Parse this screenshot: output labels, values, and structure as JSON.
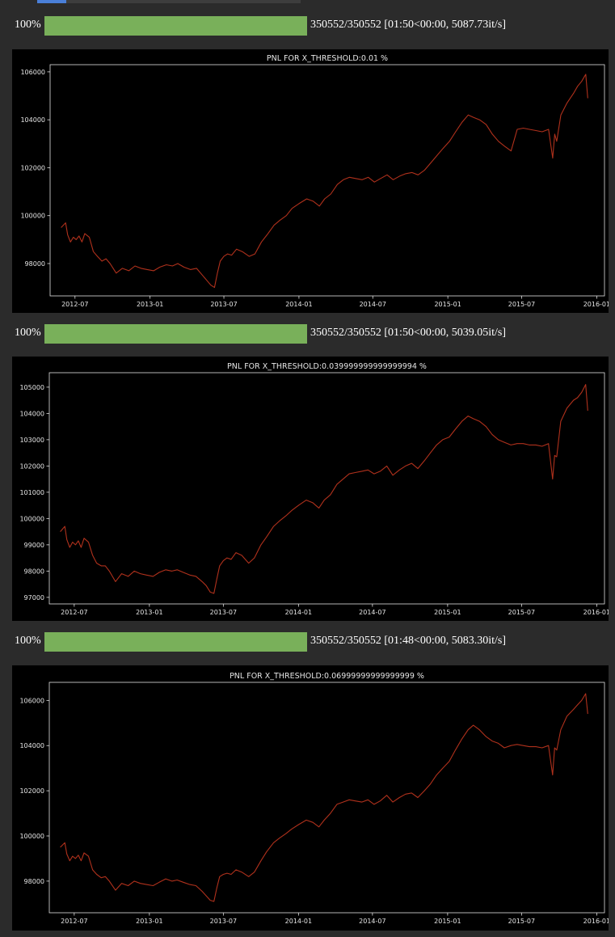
{
  "colors": {
    "background": "#2b2b2b",
    "progress_fill": "#79b05a",
    "chart_background": "#000000",
    "line": "#b0311c",
    "text": "#ffffff"
  },
  "outputs": [
    {
      "progress": {
        "percent_text": "100%",
        "fraction": 1.0,
        "stats": "350552/350552 [01:50<00:00, 5087.73it/s]"
      },
      "chart_data": {
        "type": "line",
        "title": "PNL FOR X_THRESHOLD:0.01 %",
        "xlabel": "",
        "ylabel": "",
        "xlim": [
          "2012-05-01",
          "2016-01-20"
        ],
        "ylim": [
          96650,
          106300
        ],
        "grid": false,
        "x_ticks": [
          "2012-07",
          "2013-01",
          "2013-07",
          "2014-01",
          "2014-07",
          "2015-01",
          "2015-07",
          "2016-01"
        ],
        "y_ticks": [
          98000,
          100000,
          102000,
          104000,
          106000
        ],
        "series": [
          {
            "x": [
              "2012-05-28",
              "2012-06-08",
              "2012-06-13",
              "2012-06-20",
              "2012-06-27",
              "2012-07-04",
              "2012-07-11",
              "2012-07-18",
              "2012-07-25",
              "2012-08-05",
              "2012-08-15",
              "2012-08-25",
              "2012-09-05",
              "2012-09-15",
              "2012-09-25",
              "2012-10-10",
              "2012-10-25",
              "2012-11-10",
              "2012-11-25",
              "2012-12-10",
              "2012-12-25",
              "2013-01-10",
              "2013-01-25",
              "2013-02-10",
              "2013-02-25",
              "2013-03-10",
              "2013-03-25",
              "2013-04-10",
              "2013-04-25",
              "2013-05-10",
              "2013-05-20",
              "2013-05-30",
              "2013-06-08",
              "2013-06-15",
              "2013-06-22",
              "2013-07-01",
              "2013-07-10",
              "2013-07-20",
              "2013-08-01",
              "2013-08-15",
              "2013-09-01",
              "2013-09-15",
              "2013-10-01",
              "2013-10-15",
              "2013-11-01",
              "2013-11-15",
              "2013-12-01",
              "2013-12-15",
              "2014-01-01",
              "2014-01-20",
              "2014-02-05",
              "2014-02-20",
              "2014-03-05",
              "2014-03-20",
              "2014-04-05",
              "2014-04-20",
              "2014-05-05",
              "2014-05-20",
              "2014-06-05",
              "2014-06-20",
              "2014-07-05",
              "2014-07-20",
              "2014-08-05",
              "2014-08-20",
              "2014-09-05",
              "2014-09-20",
              "2014-10-05",
              "2014-10-20",
              "2014-11-05",
              "2014-11-20",
              "2014-12-05",
              "2014-12-20",
              "2015-01-05",
              "2015-01-20",
              "2015-02-05",
              "2015-02-20",
              "2015-03-05",
              "2015-03-20",
              "2015-04-05",
              "2015-04-20",
              "2015-05-05",
              "2015-05-20",
              "2015-06-05",
              "2015-06-20",
              "2015-07-05",
              "2015-07-20",
              "2015-08-05",
              "2015-08-20",
              "2015-09-05",
              "2015-09-15",
              "2015-09-20",
              "2015-09-25",
              "2015-10-05",
              "2015-10-20",
              "2015-11-05",
              "2015-11-15",
              "2015-11-25",
              "2015-12-05",
              "2015-12-10"
            ],
            "y": [
              99500,
              99700,
              99200,
              98900,
              99100,
              99000,
              99150,
              98900,
              99250,
              99100,
              98500,
              98300,
              98100,
              98200,
              98000,
              97600,
              97800,
              97700,
              97900,
              97800,
              97750,
              97700,
              97850,
              97950,
              97900,
              98000,
              97850,
              97750,
              97800,
              97500,
              97300,
              97100,
              97000,
              97600,
              98100,
              98300,
              98400,
              98350,
              98600,
              98500,
              98300,
              98400,
              98900,
              99200,
              99600,
              99800,
              100000,
              100300,
              100500,
              100700,
              100600,
              100400,
              100700,
              100900,
              101300,
              101500,
              101600,
              101550,
              101500,
              101600,
              101400,
              101550,
              101700,
              101500,
              101650,
              101750,
              101800,
              101700,
              101900,
              102200,
              102500,
              102800,
              103100,
              103500,
              103900,
              104200,
              104100,
              104000,
              103800,
              103400,
              103100,
              102900,
              102700,
              103600,
              103650,
              103600,
              103550,
              103500,
              103600,
              102400,
              103400,
              103100,
              104200,
              104700,
              105100,
              105400,
              105600,
              105900,
              104900
            ]
          }
        ]
      }
    },
    {
      "progress": {
        "percent_text": "100%",
        "fraction": 1.0,
        "stats": "350552/350552 [01:50<00:00, 5039.05it/s]"
      },
      "chart_data": {
        "type": "line",
        "title": "PNL FOR X_THRESHOLD:0.039999999999999994 %",
        "xlabel": "",
        "ylabel": "",
        "xlim": [
          "2012-05-01",
          "2016-01-20"
        ],
        "ylim": [
          96750,
          105550
        ],
        "grid": false,
        "x_ticks": [
          "2012-07",
          "2013-01",
          "2013-07",
          "2014-01",
          "2014-07",
          "2015-01",
          "2015-07",
          "2016-01"
        ],
        "y_ticks": [
          97000,
          98000,
          99000,
          100000,
          101000,
          102000,
          103000,
          104000,
          105000
        ],
        "series": [
          {
            "x": [
              "2012-05-28",
              "2012-06-08",
              "2012-06-13",
              "2012-06-20",
              "2012-06-27",
              "2012-07-04",
              "2012-07-11",
              "2012-07-18",
              "2012-07-25",
              "2012-08-05",
              "2012-08-15",
              "2012-08-25",
              "2012-09-05",
              "2012-09-15",
              "2012-09-25",
              "2012-10-10",
              "2012-10-25",
              "2012-11-10",
              "2012-11-25",
              "2012-12-10",
              "2012-12-25",
              "2013-01-10",
              "2013-01-25",
              "2013-02-10",
              "2013-02-25",
              "2013-03-10",
              "2013-03-25",
              "2013-04-10",
              "2013-04-25",
              "2013-05-10",
              "2013-05-20",
              "2013-05-30",
              "2013-06-08",
              "2013-06-15",
              "2013-06-22",
              "2013-07-01",
              "2013-07-10",
              "2013-07-20",
              "2013-08-01",
              "2013-08-15",
              "2013-09-01",
              "2013-09-15",
              "2013-10-01",
              "2013-10-15",
              "2013-11-01",
              "2013-11-15",
              "2013-12-01",
              "2013-12-15",
              "2014-01-01",
              "2014-01-20",
              "2014-02-05",
              "2014-02-20",
              "2014-03-05",
              "2014-03-20",
              "2014-04-05",
              "2014-04-20",
              "2014-05-05",
              "2014-05-20",
              "2014-06-05",
              "2014-06-20",
              "2014-07-05",
              "2014-07-20",
              "2014-08-05",
              "2014-08-20",
              "2014-09-05",
              "2014-09-20",
              "2014-10-05",
              "2014-10-20",
              "2014-11-05",
              "2014-11-20",
              "2014-12-05",
              "2014-12-20",
              "2015-01-05",
              "2015-01-20",
              "2015-02-05",
              "2015-02-20",
              "2015-03-05",
              "2015-03-20",
              "2015-04-05",
              "2015-04-20",
              "2015-05-05",
              "2015-05-20",
              "2015-06-05",
              "2015-06-20",
              "2015-07-05",
              "2015-07-20",
              "2015-08-05",
              "2015-08-20",
              "2015-09-05",
              "2015-09-15",
              "2015-09-20",
              "2015-09-25",
              "2015-10-05",
              "2015-10-20",
              "2015-11-05",
              "2015-11-15",
              "2015-11-25",
              "2015-12-05",
              "2015-12-10"
            ],
            "y": [
              99500,
              99700,
              99200,
              98900,
              99100,
              99000,
              99150,
              98900,
              99250,
              99100,
              98600,
              98300,
              98200,
              98200,
              98000,
              97600,
              97900,
              97800,
              98000,
              97900,
              97850,
              97800,
              97950,
              98050,
              98000,
              98050,
              97950,
              97850,
              97800,
              97600,
              97450,
              97200,
              97150,
              97700,
              98200,
              98400,
              98500,
              98450,
              98700,
              98600,
              98300,
              98500,
              99000,
              99300,
              99700,
              99900,
              100100,
              100300,
              100500,
              100700,
              100600,
              100400,
              100700,
              100900,
              101300,
              101500,
              101700,
              101750,
              101800,
              101850,
              101700,
              101800,
              102000,
              101650,
              101850,
              102000,
              102100,
              101900,
              102200,
              102500,
              102800,
              103000,
              103100,
              103400,
              103700,
              103900,
              103800,
              103700,
              103500,
              103200,
              103000,
              102900,
              102800,
              102850,
              102850,
              102800,
              102800,
              102750,
              102850,
              101500,
              102400,
              102350,
              103700,
              104200,
              104500,
              104600,
              104800,
              105100,
              104100
            ]
          }
        ]
      }
    },
    {
      "progress": {
        "percent_text": "100%",
        "fraction": 1.0,
        "stats": "350552/350552 [01:48<00:00, 5083.30it/s]"
      },
      "chart_data": {
        "type": "line",
        "title": "PNL FOR X_THRESHOLD:0.06999999999999999 %",
        "xlabel": "",
        "ylabel": "",
        "xlim": [
          "2012-05-01",
          "2016-01-20"
        ],
        "ylim": [
          96600,
          106800
        ],
        "grid": false,
        "x_ticks": [
          "2012-07",
          "2013-01",
          "2013-07",
          "2014-01",
          "2014-07",
          "2015-01",
          "2015-07",
          "2016-01"
        ],
        "y_ticks": [
          98000,
          100000,
          102000,
          104000,
          106000
        ],
        "series": [
          {
            "x": [
              "2012-05-28",
              "2012-06-08",
              "2012-06-13",
              "2012-06-20",
              "2012-06-27",
              "2012-07-04",
              "2012-07-11",
              "2012-07-18",
              "2012-07-25",
              "2012-08-05",
              "2012-08-15",
              "2012-08-25",
              "2012-09-05",
              "2012-09-15",
              "2012-09-25",
              "2012-10-10",
              "2012-10-25",
              "2012-11-10",
              "2012-11-25",
              "2012-12-10",
              "2012-12-25",
              "2013-01-10",
              "2013-01-25",
              "2013-02-10",
              "2013-02-25",
              "2013-03-10",
              "2013-03-25",
              "2013-04-10",
              "2013-04-25",
              "2013-05-10",
              "2013-05-20",
              "2013-05-30",
              "2013-06-08",
              "2013-06-15",
              "2013-06-22",
              "2013-07-01",
              "2013-07-10",
              "2013-07-20",
              "2013-08-01",
              "2013-08-15",
              "2013-09-01",
              "2013-09-15",
              "2013-10-01",
              "2013-10-15",
              "2013-11-01",
              "2013-11-15",
              "2013-12-01",
              "2013-12-15",
              "2014-01-01",
              "2014-01-20",
              "2014-02-05",
              "2014-02-20",
              "2014-03-05",
              "2014-03-20",
              "2014-04-05",
              "2014-04-20",
              "2014-05-05",
              "2014-05-20",
              "2014-06-05",
              "2014-06-20",
              "2014-07-05",
              "2014-07-20",
              "2014-08-05",
              "2014-08-20",
              "2014-09-05",
              "2014-09-20",
              "2014-10-05",
              "2014-10-20",
              "2014-11-05",
              "2014-11-20",
              "2014-12-05",
              "2014-12-20",
              "2015-01-05",
              "2015-01-20",
              "2015-02-05",
              "2015-02-20",
              "2015-03-05",
              "2015-03-20",
              "2015-04-05",
              "2015-04-20",
              "2015-05-05",
              "2015-05-20",
              "2015-06-05",
              "2015-06-20",
              "2015-07-05",
              "2015-07-20",
              "2015-08-05",
              "2015-08-20",
              "2015-09-05",
              "2015-09-15",
              "2015-09-20",
              "2015-09-25",
              "2015-10-05",
              "2015-10-20",
              "2015-11-05",
              "2015-11-15",
              "2015-11-25",
              "2015-12-05",
              "2015-12-10"
            ],
            "y": [
              99500,
              99700,
              99200,
              98900,
              99100,
              99000,
              99150,
              98900,
              99250,
              99100,
              98500,
              98300,
              98150,
              98200,
              98000,
              97600,
              97900,
              97800,
              98000,
              97900,
              97850,
              97800,
              97950,
              98100,
              98000,
              98050,
              97950,
              97850,
              97800,
              97550,
              97350,
              97150,
              97100,
              97700,
              98200,
              98300,
              98350,
              98300,
              98500,
              98400,
              98200,
              98400,
              98900,
              99300,
              99700,
              99900,
              100100,
              100300,
              100500,
              100700,
              100600,
              100400,
              100700,
              101000,
              101400,
              101500,
              101600,
              101550,
              101500,
              101600,
              101400,
              101550,
              101800,
              101500,
              101700,
              101850,
              101900,
              101700,
              102000,
              102300,
              102700,
              103000,
              103300,
              103800,
              104300,
              104700,
              104900,
              104700,
              104400,
              104200,
              104100,
              103900,
              104000,
              104050,
              104000,
              103950,
              103950,
              103900,
              104000,
              102700,
              103900,
              103800,
              104700,
              105300,
              105600,
              105800,
              106000,
              106300,
              105400
            ]
          }
        ]
      }
    }
  ]
}
